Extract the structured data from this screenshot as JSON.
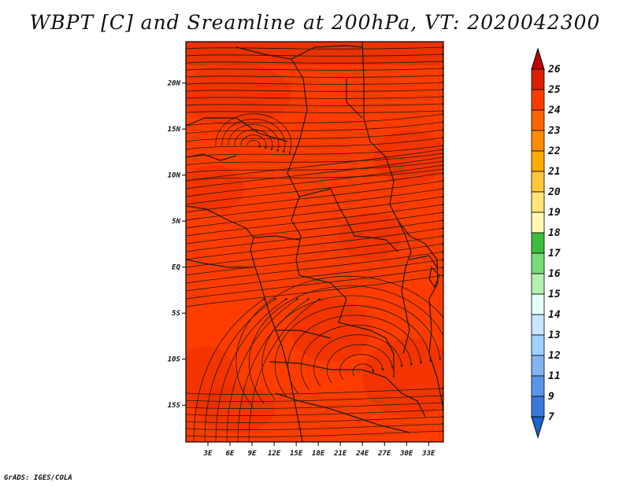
{
  "title": "WBPT [C] and Sreamline at 200hPa, VT: 2020042300",
  "credit": "GrADS: IGES/COLA",
  "map": {
    "field": "WBPT",
    "units": "C",
    "level": "200hPa",
    "valid_time": "2020042300",
    "lon_range": [
      0,
      35
    ],
    "lat_range": [
      -19,
      24.5
    ],
    "lon_ticks": [
      "3E",
      "6E",
      "9E",
      "12E",
      "15E",
      "18E",
      "21E",
      "24E",
      "27E",
      "30E",
      "33E"
    ],
    "lat_ticks": [
      "20N",
      "15N",
      "10N",
      "5N",
      "EQ",
      "5S",
      "10S",
      "15S"
    ],
    "lon_values": [
      3,
      6,
      9,
      12,
      15,
      18,
      21,
      24,
      27,
      30,
      33
    ],
    "lat_values": [
      20,
      15,
      10,
      5,
      0,
      -5,
      -10,
      -15
    ],
    "base_color": "#ff3c00",
    "dark_color": "#e82c00",
    "streamline_color": "#1a1a1a",
    "vortices": [
      {
        "name": "cyclonic-circulation-north",
        "lon": 9.2,
        "lat": 13.2
      },
      {
        "name": "anticyclone-south",
        "lon": 24.3,
        "lat": -11.5
      }
    ]
  },
  "colorbar": {
    "levels": [
      "26",
      "25",
      "24",
      "23",
      "22",
      "21",
      "20",
      "19",
      "18",
      "17",
      "16",
      "15",
      "14",
      "13",
      "12",
      "11",
      "9",
      "7"
    ],
    "colors": [
      "#c00000",
      "#dc1e00",
      "#ff3c00",
      "#ff6400",
      "#ff8c00",
      "#ffaa00",
      "#ffc83c",
      "#ffe678",
      "#fffab4",
      "#3cbe3c",
      "#78dc78",
      "#b4f0b4",
      "#e6fffa",
      "#c8e6ff",
      "#a0d2ff",
      "#82b4f0",
      "#5a96e6",
      "#3c78dc",
      "#1e64d2"
    ]
  }
}
